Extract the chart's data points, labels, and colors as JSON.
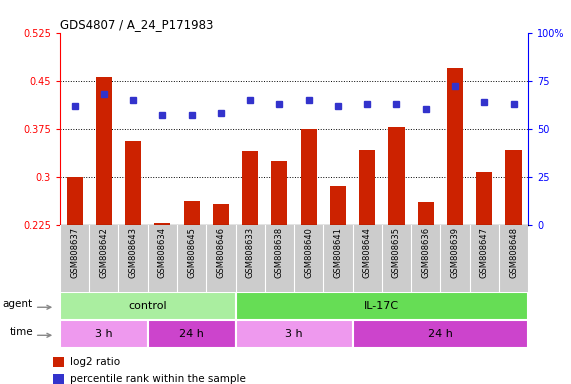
{
  "title": "GDS4807 / A_24_P171983",
  "samples": [
    "GSM808637",
    "GSM808642",
    "GSM808643",
    "GSM808634",
    "GSM808645",
    "GSM808646",
    "GSM808633",
    "GSM808638",
    "GSM808640",
    "GSM808641",
    "GSM808644",
    "GSM808635",
    "GSM808636",
    "GSM808639",
    "GSM808647",
    "GSM808648"
  ],
  "log2_ratio": [
    0.3,
    0.455,
    0.355,
    0.228,
    0.262,
    0.257,
    0.34,
    0.325,
    0.375,
    0.285,
    0.342,
    0.378,
    0.26,
    0.47,
    0.308,
    0.342
  ],
  "percentile": [
    62,
    68,
    65,
    57,
    57,
    58,
    65,
    63,
    65,
    62,
    63,
    63,
    60,
    72,
    64,
    63
  ],
  "ylim_left": [
    0.225,
    0.525
  ],
  "ylim_right": [
    0,
    100
  ],
  "yticks_left": [
    0.225,
    0.3,
    0.375,
    0.45,
    0.525
  ],
  "yticks_right": [
    0,
    25,
    50,
    75,
    100
  ],
  "ytick_right_labels": [
    "0",
    "25",
    "50",
    "75",
    "100%"
  ],
  "bar_color": "#cc2200",
  "dot_color": "#3333cc",
  "bar_width": 0.55,
  "agent_control_color": "#aaeea0",
  "agent_il17c_color": "#66dd55",
  "time_3h_color": "#ee99ee",
  "time_24h_color": "#cc44cc",
  "agent_label_control": "control",
  "agent_label_il17c": "IL-17C",
  "legend_red": "log2 ratio",
  "legend_blue": "percentile rank within the sample",
  "agent_row_label": "agent",
  "time_row_label": "time",
  "control_count": 6,
  "time_segments": [
    [
      0,
      3,
      "3 h",
      "#ee99ee"
    ],
    [
      3,
      6,
      "24 h",
      "#cc44cc"
    ],
    [
      6,
      10,
      "3 h",
      "#ee99ee"
    ],
    [
      10,
      16,
      "24 h",
      "#cc44cc"
    ]
  ],
  "gridlines": [
    0.3,
    0.375,
    0.45
  ],
  "background_color": "#ffffff"
}
